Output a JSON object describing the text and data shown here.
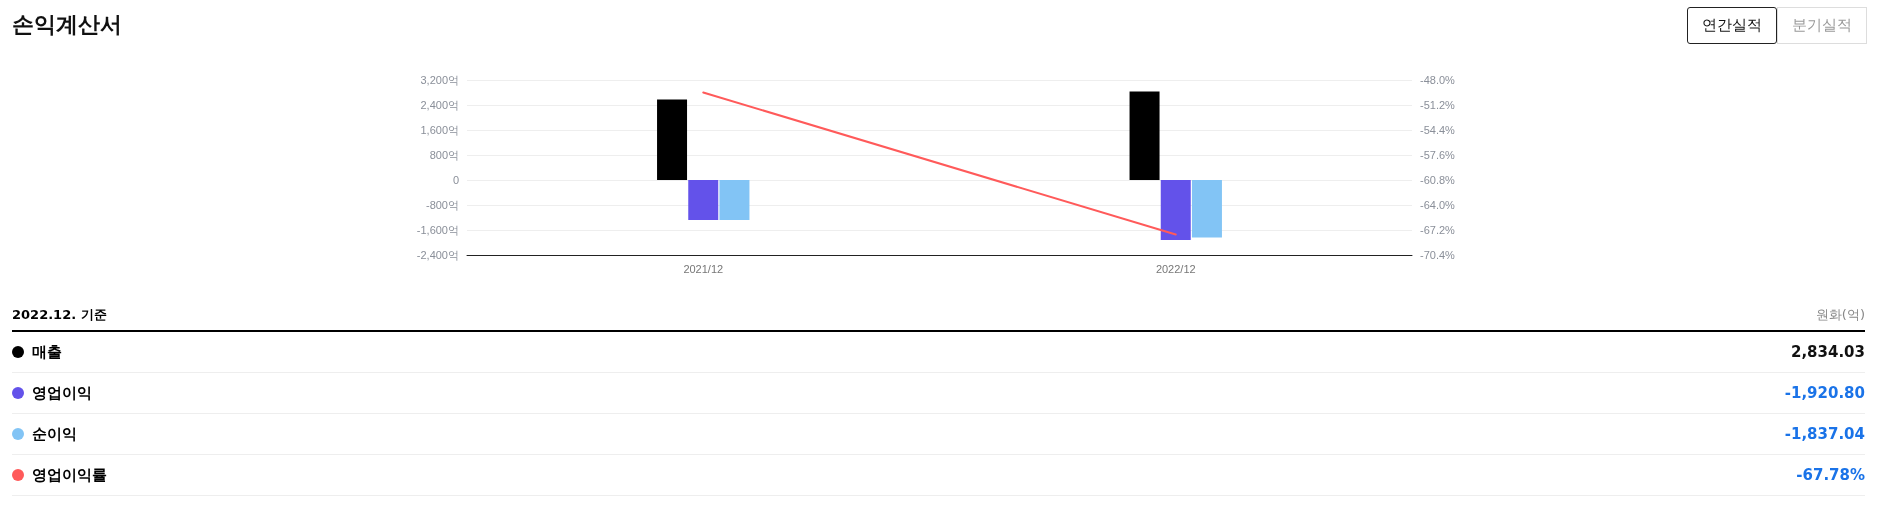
{
  "chart_data": {
    "type": "bar",
    "title": "손익계산서",
    "categories": [
      "2021/12",
      "2022/12"
    ],
    "series": [
      {
        "name": "매출",
        "color": "#000000",
        "values": [
          2580,
          2834.03
        ]
      },
      {
        "name": "영업이익",
        "color": "#6352ea",
        "values": [
          -1280,
          -1920.8
        ]
      },
      {
        "name": "순이익",
        "color": "#82c4f5",
        "values": [
          -1280,
          -1837.04
        ]
      },
      {
        "name": "영업이익률",
        "type": "line",
        "axis": "y2",
        "color": "#ff5a5a",
        "values": [
          -49.6,
          -67.78
        ]
      }
    ],
    "ylim": [
      -2400,
      3200
    ],
    "yticks": [
      {
        "value": -2400,
        "label": "-2,400억"
      },
      {
        "value": -1600,
        "label": "-1,600억"
      },
      {
        "value": -800,
        "label": "-800억"
      },
      0,
      {
        "value": 800,
        "label": "800억"
      },
      {
        "value": 1600,
        "label": "1,600억"
      },
      {
        "value": 2400,
        "label": "2,400억"
      },
      {
        "value": 3200,
        "label": "3,200억"
      }
    ],
    "y2lim": [
      -70.4,
      -48.0
    ],
    "y2ticks": [
      {
        "value": -70.4,
        "label": "-70.4%"
      },
      {
        "value": -67.2,
        "label": "-67.2%"
      },
      {
        "value": -64.0,
        "label": "-64.0%"
      },
      {
        "value": -60.8,
        "label": "-60.8%"
      },
      {
        "value": -57.6,
        "label": "-57.6%"
      },
      {
        "value": -54.4,
        "label": "-54.4%"
      },
      {
        "value": -51.2,
        "label": "-51.2%"
      },
      {
        "value": -48.0,
        "label": "-48.0%"
      }
    ],
    "grid": "y",
    "legend": "bottom",
    "marker": "none",
    "annotations": [
      "2022.12. 기준",
      "원화(억)",
      "연간실적",
      "분기실적",
      "2,834.03",
      "-1,920.80",
      "-1,837.04",
      "-67.78%"
    ]
  }
}
